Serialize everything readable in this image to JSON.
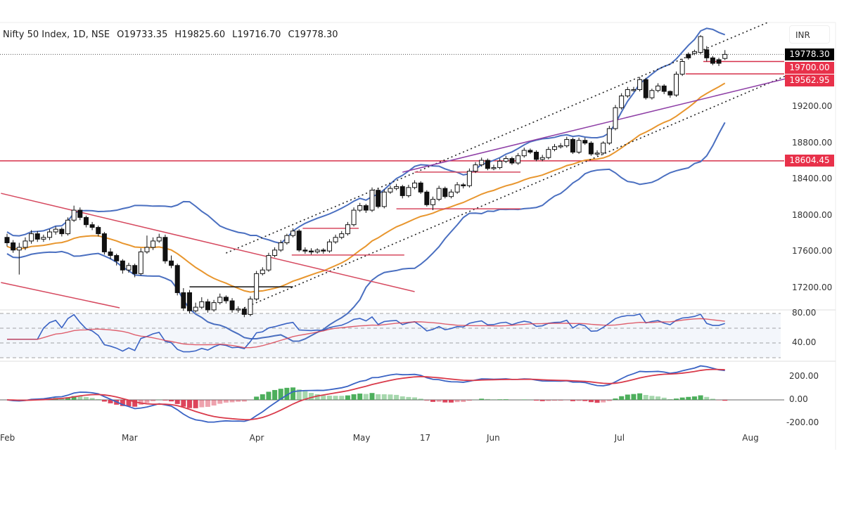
{
  "header": {
    "symbol": "Nifty 50 Index, 1D, NSE",
    "open": "O19733.35",
    "high": "H19825.60",
    "low": "L19716.70",
    "close": "C19778.30"
  },
  "currency_button": "INR",
  "price_tags": [
    {
      "label": "19778.30",
      "color": "#000000"
    },
    {
      "label": "19700.00",
      "color": "#e8314a"
    },
    {
      "label": "19562.95",
      "color": "#e8314a"
    },
    {
      "label": "18604.45",
      "color": "#e8314a"
    }
  ],
  "chart_data": [
    {
      "type": "candlestick",
      "ylim": [
        16850,
        20150
      ],
      "y_ticks": [
        "19200.00",
        "18800.00",
        "18400.00",
        "18000.00",
        "17600.00",
        "17200.00"
      ],
      "y_tick_values": [
        19200,
        18800,
        18400,
        18000,
        17600,
        17200
      ],
      "x_ticks": [
        {
          "label": "Feb",
          "at": 0
        },
        {
          "label": "Mar",
          "at": 20
        },
        {
          "label": "Apr",
          "at": 41
        },
        {
          "label": "May",
          "at": 58
        },
        {
          "label": "17",
          "at": 69
        },
        {
          "label": "Jun",
          "at": 80
        },
        {
          "label": "Jul",
          "at": 101
        },
        {
          "label": "Aug",
          "at": 122
        }
      ],
      "last_price": 19778.3,
      "candles": [
        [
          17760,
          17800,
          17660,
          17700
        ],
        [
          17700,
          17730,
          17590,
          17620
        ],
        [
          17620,
          17700,
          17350,
          17650
        ],
        [
          17650,
          17760,
          17620,
          17720
        ],
        [
          17720,
          17840,
          17690,
          17800
        ],
        [
          17800,
          17830,
          17710,
          17740
        ],
        [
          17740,
          17790,
          17710,
          17760
        ],
        [
          17760,
          17850,
          17730,
          17820
        ],
        [
          17820,
          17880,
          17790,
          17850
        ],
        [
          17850,
          17870,
          17770,
          17800
        ],
        [
          17800,
          17980,
          17780,
          17950
        ],
        [
          17950,
          18110,
          17930,
          18060
        ],
        [
          18060,
          18090,
          17950,
          17980
        ],
        [
          17980,
          18000,
          17870,
          17900
        ],
        [
          17900,
          17930,
          17840,
          17870
        ],
        [
          17870,
          17890,
          17770,
          17800
        ],
        [
          17800,
          17820,
          17570,
          17600
        ],
        [
          17600,
          17640,
          17520,
          17560
        ],
        [
          17560,
          17580,
          17450,
          17500
        ],
        [
          17500,
          17520,
          17360,
          17400
        ],
        [
          17400,
          17480,
          17370,
          17450
        ],
        [
          17450,
          17470,
          17320,
          17360
        ],
        [
          17360,
          17640,
          17340,
          17600
        ],
        [
          17600,
          17780,
          17580,
          17650
        ],
        [
          17650,
          17760,
          17620,
          17720
        ],
        [
          17720,
          17800,
          17700,
          17760
        ],
        [
          17760,
          17790,
          17470,
          17500
        ],
        [
          17500,
          17560,
          17420,
          17450
        ],
        [
          17450,
          17470,
          17120,
          17150
        ],
        [
          17150,
          17200,
          16950,
          16980
        ],
        [
          17150,
          17180,
          16920,
          16950
        ],
        [
          16950,
          17040,
          16930,
          16990
        ],
        [
          16990,
          17100,
          16970,
          17050
        ],
        [
          17050,
          17080,
          16930,
          16960
        ],
        [
          16960,
          17070,
          16940,
          17040
        ],
        [
          17040,
          17140,
          17020,
          17100
        ],
        [
          17100,
          17120,
          17030,
          17060
        ],
        [
          17060,
          17090,
          16930,
          16960
        ],
        [
          16960,
          17000,
          16930,
          16970
        ],
        [
          16970,
          16990,
          16880,
          16910
        ],
        [
          16910,
          17110,
          16890,
          17080
        ],
        [
          17080,
          17390,
          17060,
          17360
        ],
        [
          17360,
          17430,
          17340,
          17400
        ],
        [
          17400,
          17590,
          17380,
          17560
        ],
        [
          17560,
          17650,
          17540,
          17620
        ],
        [
          17620,
          17730,
          17600,
          17700
        ],
        [
          17700,
          17800,
          17680,
          17780
        ],
        [
          17780,
          17860,
          17760,
          17830
        ],
        [
          17830,
          17850,
          17600,
          17620
        ],
        [
          17620,
          17650,
          17580,
          17610
        ],
        [
          17610,
          17640,
          17570,
          17600
        ],
        [
          17600,
          17640,
          17580,
          17620
        ],
        [
          17620,
          17640,
          17580,
          17610
        ],
        [
          17610,
          17740,
          17590,
          17710
        ],
        [
          17710,
          17790,
          17690,
          17760
        ],
        [
          17760,
          17830,
          17740,
          17800
        ],
        [
          17800,
          17930,
          17780,
          17900
        ],
        [
          17900,
          18090,
          17880,
          18060
        ],
        [
          18060,
          18140,
          18040,
          18110
        ],
        [
          18110,
          18130,
          18030,
          18060
        ],
        [
          18060,
          18310,
          18040,
          18280
        ],
        [
          18280,
          18300,
          18080,
          18100
        ],
        [
          18100,
          18290,
          18080,
          18260
        ],
        [
          18260,
          18330,
          18240,
          18300
        ],
        [
          18300,
          18350,
          18280,
          18320
        ],
        [
          18320,
          18340,
          18190,
          18220
        ],
        [
          18220,
          18340,
          18200,
          18310
        ],
        [
          18310,
          18390,
          18290,
          18360
        ],
        [
          18360,
          18380,
          18240,
          18260
        ],
        [
          18260,
          18280,
          18100,
          18120
        ],
        [
          18120,
          18210,
          18060,
          18180
        ],
        [
          18180,
          18330,
          18160,
          18300
        ],
        [
          18300,
          18320,
          18190,
          18210
        ],
        [
          18210,
          18290,
          18190,
          18260
        ],
        [
          18260,
          18370,
          18240,
          18340
        ],
        [
          18340,
          18360,
          18300,
          18330
        ],
        [
          18330,
          18520,
          18310,
          18490
        ],
        [
          18490,
          18590,
          18470,
          18560
        ],
        [
          18560,
          18640,
          18540,
          18610
        ],
        [
          18610,
          18630,
          18500,
          18520
        ],
        [
          18520,
          18560,
          18500,
          18530
        ],
        [
          18530,
          18630,
          18510,
          18600
        ],
        [
          18600,
          18660,
          18580,
          18630
        ],
        [
          18630,
          18650,
          18560,
          18580
        ],
        [
          18580,
          18690,
          18560,
          18660
        ],
        [
          18660,
          18750,
          18640,
          18720
        ],
        [
          18720,
          18740,
          18680,
          18700
        ],
        [
          18700,
          18720,
          18600,
          18620
        ],
        [
          18620,
          18670,
          18600,
          18640
        ],
        [
          18640,
          18760,
          18620,
          18730
        ],
        [
          18730,
          18790,
          18710,
          18760
        ],
        [
          18760,
          18800,
          18740,
          18770
        ],
        [
          18770,
          18870,
          18750,
          18840
        ],
        [
          18840,
          18860,
          18680,
          18700
        ],
        [
          18700,
          18860,
          18680,
          18830
        ],
        [
          18830,
          18860,
          18780,
          18800
        ],
        [
          18800,
          18820,
          18660,
          18680
        ],
        [
          18680,
          18720,
          18660,
          18690
        ],
        [
          18690,
          18820,
          18670,
          18800
        ],
        [
          18800,
          18990,
          18780,
          18960
        ],
        [
          18960,
          19220,
          18940,
          19190
        ],
        [
          19190,
          19350,
          19170,
          19320
        ],
        [
          19320,
          19420,
          19300,
          19390
        ],
        [
          19390,
          19420,
          19370,
          19390
        ],
        [
          19390,
          19530,
          19370,
          19500
        ],
        [
          19500,
          19520,
          19280,
          19300
        ],
        [
          19300,
          19400,
          19280,
          19380
        ],
        [
          19380,
          19460,
          19360,
          19430
        ],
        [
          19430,
          19450,
          19340,
          19370
        ],
        [
          19370,
          19380,
          19300,
          19330
        ],
        [
          19330,
          19590,
          19310,
          19560
        ],
        [
          19560,
          19730,
          19540,
          19700
        ],
        [
          19780,
          19800,
          19720,
          19740
        ],
        [
          19790,
          19830,
          19770,
          19810
        ],
        [
          19800,
          19990,
          19780,
          19975
        ],
        [
          19830,
          19870,
          19700,
          19740
        ],
        [
          19740,
          19760,
          19660,
          19680
        ],
        [
          19720,
          19740,
          19650,
          19680
        ],
        [
          19733.35,
          19825.6,
          19716.7,
          19778.3
        ]
      ],
      "overlays": [
        "Bollinger Bands",
        "EMA"
      ],
      "horizontal_levels": [
        19700.0,
        19562.95,
        18604.45
      ],
      "trendlines": [
        {
          "style": "dotted",
          "color": "#222222",
          "from": [
            36,
            17587
          ],
          "to": [
            125,
            20130
          ]
        },
        {
          "style": "dotted",
          "color": "#222222",
          "from": [
            39,
            16983
          ],
          "to": [
            128,
            19541
          ]
        },
        {
          "style": "solid",
          "color": "#8e3fa6",
          "from": [
            65,
            18479
          ],
          "to": [
            128,
            19510
          ]
        },
        {
          "style": "solid",
          "color": "#d6495f",
          "from": [
            -1,
            18246
          ],
          "to": [
            67,
            17161
          ]
        },
        {
          "style": "solid",
          "color": "#d6495f",
          "from": [
            -1,
            17262
          ],
          "to": [
            18.5,
            16983
          ]
        },
        {
          "style": "solid",
          "color": "#111111",
          "from": [
            30,
            17215
          ],
          "to": [
            47,
            17215
          ]
        },
        {
          "style": "solid",
          "color": "#d6495f",
          "from": [
            48.6,
            17860
          ],
          "to": [
            57.8,
            17860
          ]
        },
        {
          "style": "solid",
          "color": "#d6495f",
          "from": [
            46.8,
            17565
          ],
          "to": [
            65.3,
            17565
          ]
        },
        {
          "style": "solid",
          "color": "#d6495f",
          "from": [
            64,
            18075
          ],
          "to": [
            84.4,
            18075
          ]
        },
        {
          "style": "solid",
          "color": "#d6495f",
          "from": [
            67,
            18480
          ],
          "to": [
            84.4,
            18480
          ]
        }
      ]
    },
    {
      "type": "line",
      "indicator": "RSI",
      "y_ticks": [
        "80.00",
        "40.00"
      ],
      "y_tick_values": [
        80,
        40
      ]
    },
    {
      "type": "bar",
      "indicator": "MACD",
      "y_ticks": [
        "200.00",
        "0.00",
        "-200.00"
      ],
      "y_tick_values": [
        200,
        0,
        -200
      ]
    }
  ],
  "colors": {
    "bollinger": "#4a6fc0",
    "ema": "#e8962e",
    "level": "#d6304a",
    "macd_line": "#3a63c4",
    "signal_line": "#d93a4a",
    "hist_up": "#3aa64a",
    "hist_down": "#d9314a"
  }
}
